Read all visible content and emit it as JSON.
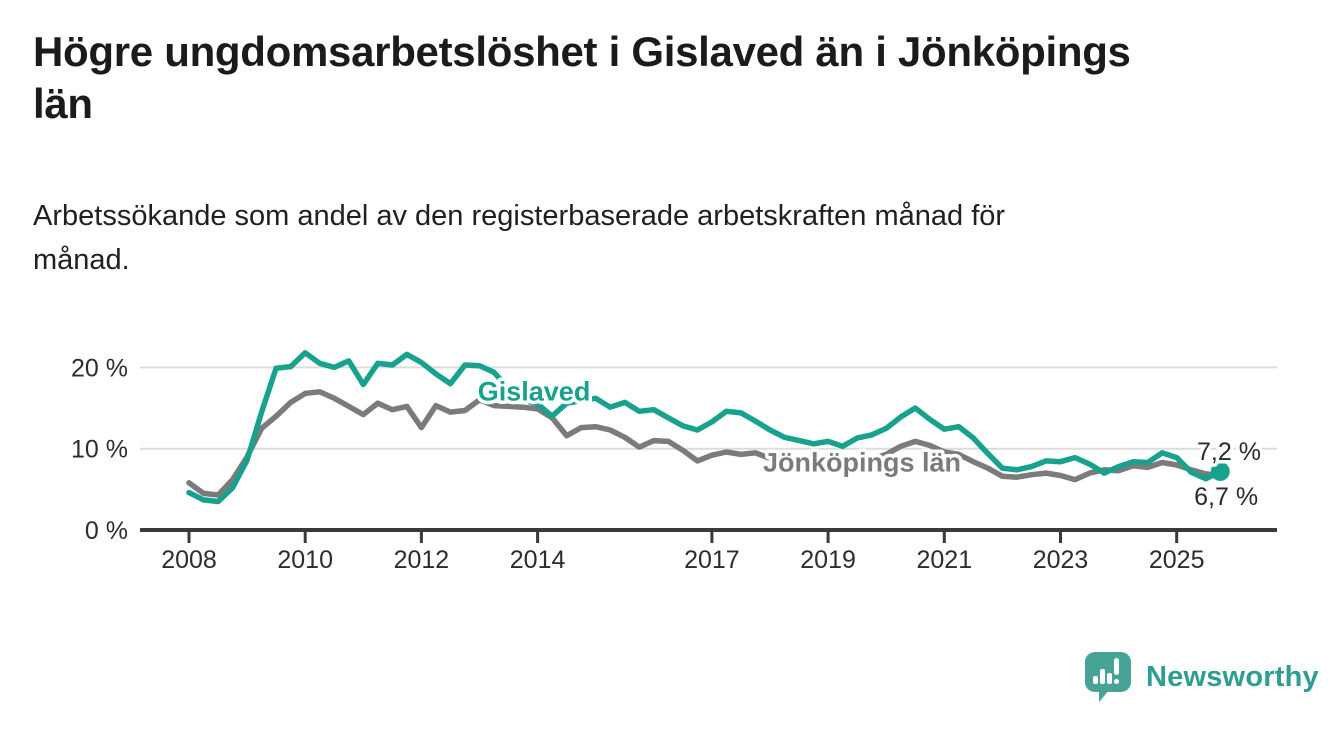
{
  "header": {
    "title": "Högre ungdomsarbetslöshet i Gislaved än i Jönköpings län",
    "title_lines": [
      "Högre ungdomsarbetslöshet i Gislaved än i Jönköpings",
      "län"
    ],
    "subtitle": "Arbetssökande som andel av den registerbaserade arbetskraften månad för månad.",
    "subtitle_lines": [
      "Arbetssökande som andel av den registerbaserade arbetskraften månad för",
      "månad."
    ]
  },
  "footer": {
    "brand": "Newsworthy",
    "brand_color": "#2f9e92",
    "logo_icon": "speech-bubble-bar-chart-icon",
    "logo_mark_color": "#46a396"
  },
  "colors": {
    "gislaved_line": "#18a28d",
    "jonkopings_line": "#7b7b7b",
    "axis": "#3a3a3a",
    "gridline": "#dcdcdc",
    "tick_label": "#2d2d2d",
    "end_label_text": "#2b2b2b",
    "title_text": "#1b1b1b"
  },
  "chart_data": {
    "type": "line",
    "title": "Högre ungdomsarbetslöshet i Gislaved än i Jönköpings län",
    "subtitle": "Arbetssökande som andel av den registerbaserade arbetskraften månad för månad.",
    "xlabel": "",
    "ylabel": "",
    "y_unit": "%",
    "x_unit": "year (decimal; monthly series sampled quarterly)",
    "grid": "horizontal gridlines at 10 % and 20 %",
    "legend": "inline series labels on chart",
    "xlim": [
      2007.2,
      2026.7
    ],
    "ylim": [
      0,
      24.6
    ],
    "x_ticks": [
      2008,
      2010,
      2012,
      2014,
      2017,
      2019,
      2021,
      2023,
      2025
    ],
    "y_ticks": [
      {
        "value": 0,
        "label": "0 %"
      },
      {
        "value": 10,
        "label": "10 %"
      },
      {
        "value": 20,
        "label": "20 %"
      }
    ],
    "x": [
      2008,
      2008.25,
      2008.5,
      2008.75,
      2009,
      2009.25,
      2009.5,
      2009.75,
      2010,
      2010.25,
      2010.5,
      2010.75,
      2011,
      2011.25,
      2011.5,
      2011.75,
      2012,
      2012.25,
      2012.5,
      2012.75,
      2013,
      2013.25,
      2013.5,
      2013.75,
      2014,
      2014.25,
      2014.5,
      2014.75,
      2015,
      2015.25,
      2015.5,
      2015.75,
      2016,
      2016.25,
      2016.5,
      2016.75,
      2017,
      2017.25,
      2017.5,
      2017.75,
      2018,
      2018.25,
      2018.5,
      2018.75,
      2019,
      2019.25,
      2019.5,
      2019.75,
      2020,
      2020.25,
      2020.5,
      2020.75,
      2021,
      2021.25,
      2021.5,
      2021.75,
      2022,
      2022.25,
      2022.5,
      2022.75,
      2023,
      2023.25,
      2023.5,
      2023.75,
      2024,
      2024.25,
      2024.5,
      2024.75,
      2025,
      2025.25,
      2025.5,
      2025.75
    ],
    "series": [
      {
        "name": "Gislaved",
        "slug": "gislaved",
        "color": "#18a28d",
        "end_dot": true,
        "end_value": 7.2,
        "end_value_label": "7,2 %",
        "values": [
          4.6,
          3.7,
          3.5,
          5.2,
          8.6,
          14.5,
          19.9,
          20.1,
          21.8,
          20.5,
          20.0,
          20.8,
          17.9,
          20.5,
          20.3,
          21.6,
          20.6,
          19.2,
          18.0,
          20.3,
          20.2,
          19.4,
          17.4,
          16.0,
          15.5,
          14.0,
          15.6,
          15.9,
          16.2,
          15.1,
          15.7,
          14.6,
          14.8,
          13.8,
          12.8,
          12.3,
          13.3,
          14.6,
          14.4,
          13.4,
          12.3,
          11.4,
          11.0,
          10.6,
          10.9,
          10.3,
          11.3,
          11.7,
          12.5,
          13.9,
          15.0,
          13.6,
          12.4,
          12.7,
          11.3,
          9.4,
          7.6,
          7.4,
          7.8,
          8.5,
          8.4,
          8.9,
          8.1,
          7.0,
          7.8,
          8.4,
          8.3,
          9.5,
          8.9,
          7.1,
          6.3,
          7.2
        ]
      },
      {
        "name": "Jönköpings län",
        "slug": "jonkopings-lan",
        "color": "#7b7b7b",
        "end_dot": false,
        "end_value": 6.7,
        "end_value_label": "6,7 %",
        "values": [
          5.8,
          4.5,
          4.3,
          6.2,
          9.0,
          12.5,
          14.0,
          15.7,
          16.8,
          17.0,
          16.2,
          15.2,
          14.2,
          15.6,
          14.8,
          15.2,
          12.6,
          15.3,
          14.5,
          14.7,
          16.0,
          15.3,
          15.2,
          15.1,
          14.9,
          13.8,
          11.6,
          12.6,
          12.7,
          12.3,
          11.4,
          10.2,
          11.0,
          10.9,
          9.8,
          8.5,
          9.2,
          9.6,
          9.3,
          9.5,
          8.8,
          8.6,
          9.0,
          8.6,
          8.5,
          8.2,
          8.4,
          8.7,
          9.3,
          10.3,
          10.9,
          10.4,
          9.6,
          9.3,
          8.4,
          7.6,
          6.6,
          6.5,
          6.8,
          7.0,
          6.7,
          6.2,
          7.0,
          7.4,
          7.3,
          7.9,
          7.7,
          8.3,
          8.0,
          7.4,
          6.9,
          6.7
        ]
      }
    ],
    "annotations": [
      {
        "id": "series-label-gislaved",
        "text": "Gislaved",
        "year": 2012.97,
        "value": 15.9,
        "color": "#18a28d",
        "bold": true,
        "halo": true,
        "font_size": 27,
        "anchor": "start"
      },
      {
        "id": "series-label-jonkopings-lan",
        "text": "Jönköpings län",
        "year": 2017.88,
        "value": 7.2,
        "color": "#7b7b7b",
        "bold": true,
        "halo": true,
        "font_size": 27,
        "anchor": "start"
      },
      {
        "id": "end-label-gislaved",
        "text": "7,2 %",
        "year": 2025.35,
        "value": 8.6,
        "color": "#2b2b2b",
        "bold": false,
        "halo": true,
        "font_size": 25,
        "anchor": "start"
      },
      {
        "id": "end-label-jonkopings-lan",
        "text": "6,7 %",
        "year": 2025.3,
        "value": 3.1,
        "color": "#2b2b2b",
        "bold": false,
        "halo": true,
        "font_size": 25,
        "anchor": "start"
      }
    ]
  }
}
